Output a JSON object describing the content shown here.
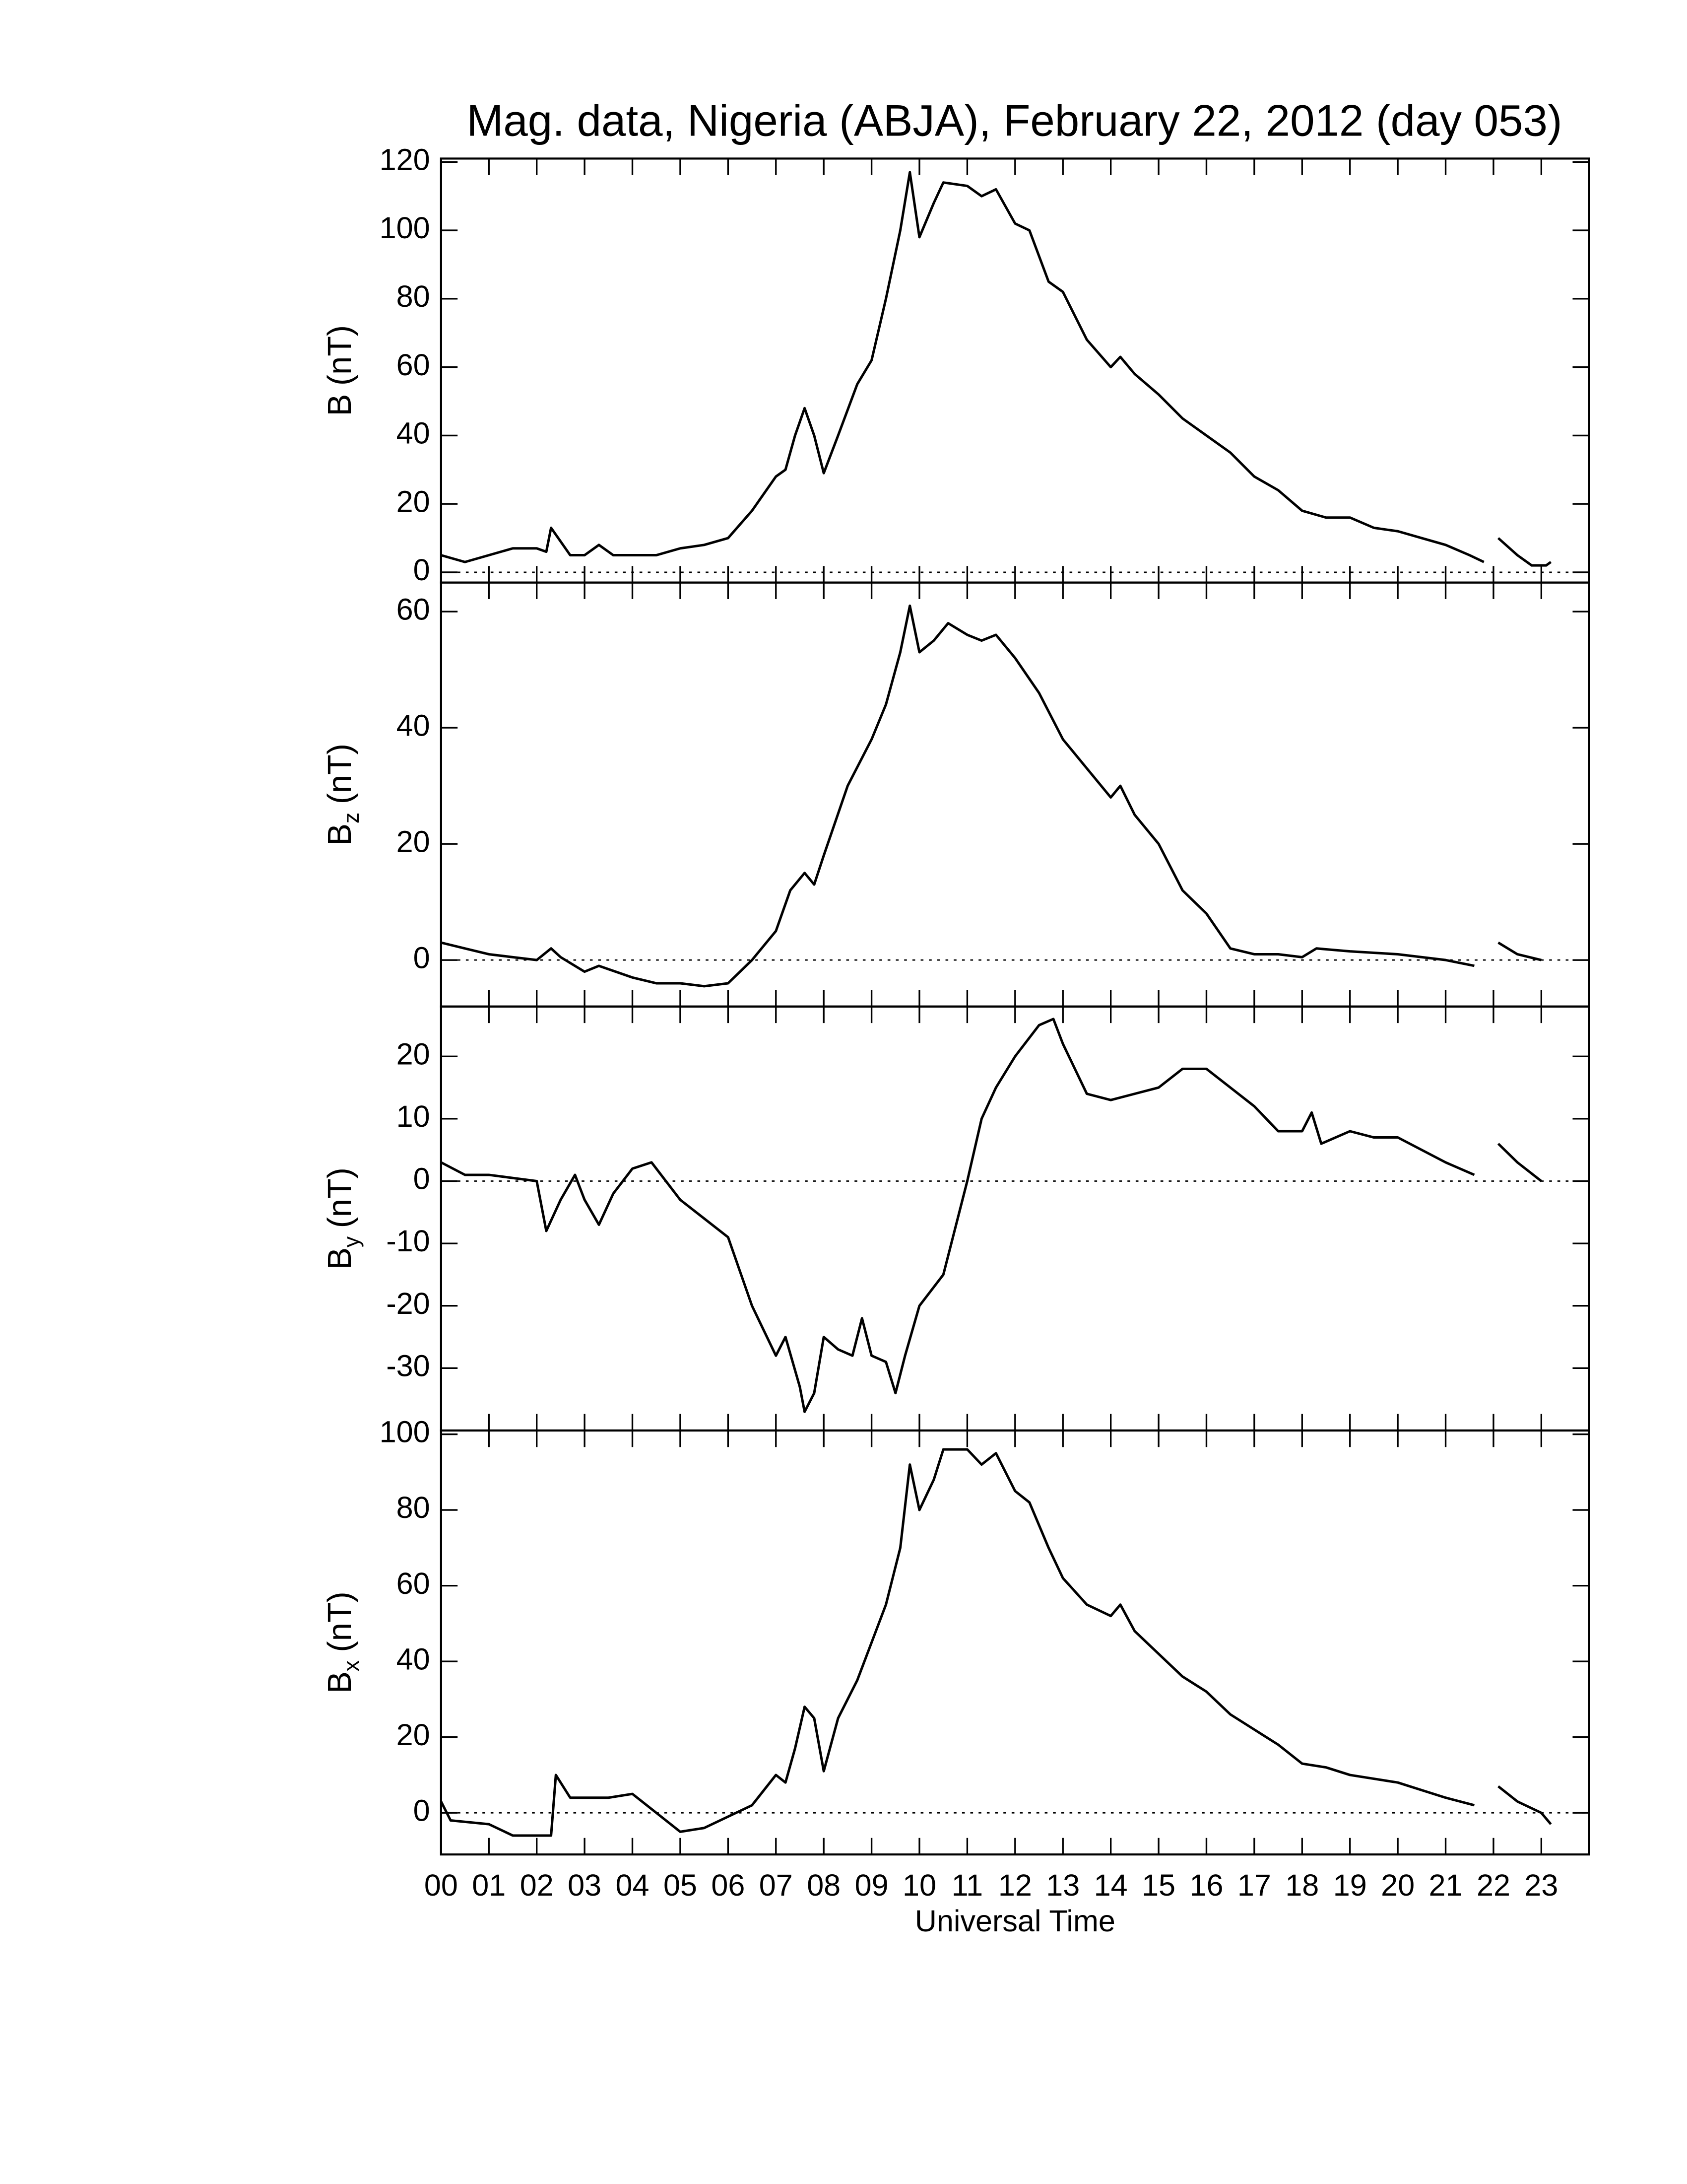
{
  "chart_data": [
    {
      "type": "line",
      "title": "Mag. data, Nigeria (ABJA), February 22, 2012 (day 053)",
      "ylabel": {
        "text": "B",
        "unit": "(nT)"
      },
      "xlim": [
        0,
        24
      ],
      "ylim": [
        -3,
        121
      ],
      "yticks": [
        0,
        20,
        40,
        60,
        80,
        100,
        120
      ],
      "zero_line": true,
      "series": [
        {
          "name": "B",
          "color": "#000000",
          "x": [
            0,
            0.5,
            1,
            1.5,
            2,
            2.2,
            2.3,
            2.5,
            2.7,
            3,
            3.3,
            3.6,
            4,
            4.5,
            5,
            5.5,
            6,
            6.5,
            7,
            7.2,
            7.4,
            7.6,
            7.8,
            8,
            8.3,
            8.7,
            9,
            9.3,
            9.6,
            9.8,
            10,
            10.3,
            10.5,
            11,
            11.3,
            11.6,
            12,
            12.3,
            12.7,
            13,
            13.5,
            14,
            14.2,
            14.5,
            15,
            15.5,
            16,
            16.5,
            17,
            17.5,
            18,
            18.5,
            19,
            19.5,
            20,
            20.5,
            21,
            21.5,
            21.8,
            22,
            22.1,
            22.5,
            22.8,
            23.1,
            23.2
          ],
          "values": [
            5,
            3,
            5,
            7,
            7,
            6,
            13,
            9,
            5,
            5,
            8,
            5,
            5,
            5,
            7,
            8,
            10,
            18,
            28,
            30,
            40,
            48,
            40,
            29,
            40,
            55,
            62,
            80,
            100,
            117,
            98,
            108,
            114,
            113,
            110,
            112,
            102,
            100,
            85,
            82,
            68,
            60,
            63,
            58,
            52,
            45,
            40,
            35,
            28,
            24,
            18,
            16,
            16,
            13,
            12,
            10,
            8,
            5,
            3,
            null,
            10,
            5,
            2,
            2,
            3
          ]
        }
      ]
    },
    {
      "type": "line",
      "ylabel": {
        "text": "B",
        "sub": "z",
        "unit": "(nT)"
      },
      "xlim": [
        0,
        24
      ],
      "ylim": [
        -8,
        65
      ],
      "yticks": [
        0,
        20,
        40,
        60
      ],
      "zero_line": true,
      "series": [
        {
          "name": "Bz",
          "color": "#000000",
          "x": [
            0,
            0.5,
            1,
            1.5,
            2,
            2.3,
            2.5,
            3,
            3.3,
            4,
            4.5,
            5,
            5.5,
            6,
            6.5,
            7,
            7.3,
            7.6,
            7.8,
            8,
            8.5,
            9,
            9.3,
            9.6,
            9.8,
            10,
            10.3,
            10.6,
            11,
            11.3,
            11.6,
            12,
            12.5,
            13,
            13.5,
            14,
            14.2,
            14.5,
            15,
            15.5,
            16,
            16.5,
            17,
            17.5,
            18,
            18.3,
            19,
            20,
            21,
            21.6,
            22,
            22.1,
            22.5,
            23
          ],
          "values": [
            3,
            2,
            1,
            0.5,
            0,
            2,
            0.5,
            -2,
            -1,
            -3,
            -4,
            -4,
            -4.5,
            -4,
            0,
            5,
            12,
            15,
            13,
            18,
            30,
            38,
            44,
            53,
            61,
            53,
            55,
            58,
            56,
            55,
            56,
            52,
            46,
            38,
            33,
            28,
            30,
            25,
            20,
            12,
            8,
            2,
            1,
            1,
            0.5,
            2,
            1.5,
            1,
            0,
            -1,
            null,
            3,
            1,
            0
          ]
        }
      ]
    },
    {
      "type": "line",
      "ylabel": {
        "text": "B",
        "sub": "y",
        "unit": "(nT)"
      },
      "xlim": [
        0,
        24
      ],
      "ylim": [
        -40,
        28
      ],
      "yticks": [
        -30,
        -20,
        -10,
        0,
        10,
        20
      ],
      "zero_line": true,
      "series": [
        {
          "name": "By",
          "color": "#000000",
          "x": [
            0,
            0.5,
            1,
            1.5,
            2,
            2.2,
            2.5,
            2.8,
            3,
            3.3,
            3.6,
            4,
            4.4,
            5,
            5.5,
            6,
            6.5,
            7,
            7.2,
            7.5,
            7.6,
            7.8,
            8,
            8.3,
            8.6,
            8.8,
            9,
            9.3,
            9.5,
            9.7,
            10,
            10.5,
            11,
            11.3,
            11.6,
            12,
            12.5,
            12.8,
            13,
            13.5,
            14,
            14.5,
            15,
            15.5,
            16,
            16.5,
            17,
            17.5,
            18,
            18.2,
            18.4,
            19,
            19.5,
            20,
            20.5,
            21,
            21.6,
            22,
            22.1,
            22.5,
            23
          ],
          "values": [
            3,
            1,
            1,
            0.5,
            0,
            -8,
            -3,
            1,
            -3,
            -7,
            -2,
            2,
            3,
            -3,
            -6,
            -9,
            -20,
            -28,
            -25,
            -33,
            -37,
            -34,
            -25,
            -27,
            -28,
            -22,
            -28,
            -29,
            -34,
            -28,
            -20,
            -15,
            0,
            10,
            15,
            20,
            25,
            26,
            22,
            14,
            13,
            14,
            15,
            18,
            18,
            15,
            12,
            8,
            8,
            11,
            6,
            8,
            7,
            7,
            5,
            3,
            1,
            null,
            6,
            3,
            0
          ]
        }
      ]
    },
    {
      "type": "line",
      "ylabel": {
        "text": "B",
        "sub": "x",
        "unit": "(nT)"
      },
      "xlabel": "Universal Time",
      "xlim": [
        0,
        24
      ],
      "ylim": [
        -11,
        101
      ],
      "yticks": [
        0,
        20,
        40,
        60,
        80,
        100
      ],
      "zero_line": true,
      "xticks": [
        {
          "value": 0,
          "label": "00"
        },
        {
          "value": 1,
          "label": "01"
        },
        {
          "value": 2,
          "label": "02"
        },
        {
          "value": 3,
          "label": "03"
        },
        {
          "value": 4,
          "label": "04"
        },
        {
          "value": 5,
          "label": "05"
        },
        {
          "value": 6,
          "label": "06"
        },
        {
          "value": 7,
          "label": "07"
        },
        {
          "value": 8,
          "label": "08"
        },
        {
          "value": 9,
          "label": "09"
        },
        {
          "value": 10,
          "label": "10"
        },
        {
          "value": 11,
          "label": "11"
        },
        {
          "value": 12,
          "label": "12"
        },
        {
          "value": 13,
          "label": "13"
        },
        {
          "value": 14,
          "label": "14"
        },
        {
          "value": 15,
          "label": "15"
        },
        {
          "value": 16,
          "label": "16"
        },
        {
          "value": 17,
          "label": "17"
        },
        {
          "value": 18,
          "label": "18"
        },
        {
          "value": 19,
          "label": "19"
        },
        {
          "value": 20,
          "label": "20"
        },
        {
          "value": 21,
          "label": "21"
        },
        {
          "value": 22,
          "label": "22"
        },
        {
          "value": 23,
          "label": "23"
        }
      ],
      "series": [
        {
          "name": "Bx",
          "color": "#000000",
          "x": [
            0,
            0.2,
            1,
            1.5,
            2,
            2.3,
            2.4,
            2.7,
            3,
            3.5,
            4,
            4.5,
            5,
            5.5,
            6,
            6.5,
            7,
            7.2,
            7.4,
            7.6,
            7.8,
            8,
            8.3,
            8.7,
            9,
            9.3,
            9.6,
            9.8,
            10,
            10.3,
            10.5,
            11,
            11.3,
            11.6,
            12,
            12.3,
            12.7,
            13,
            13.5,
            14,
            14.2,
            14.5,
            15,
            15.5,
            16,
            16.5,
            17,
            17.5,
            18,
            18.5,
            19,
            19.5,
            20,
            20.5,
            21,
            21.6,
            22,
            22.1,
            22.5,
            23,
            23.2
          ],
          "values": [
            3,
            -2,
            -3,
            -6,
            -6,
            -6,
            10,
            4,
            4,
            4,
            5,
            0,
            -5,
            -4,
            -1,
            2,
            10,
            8,
            17,
            28,
            25,
            11,
            25,
            35,
            45,
            55,
            70,
            92,
            80,
            88,
            96,
            96,
            92,
            95,
            85,
            82,
            70,
            62,
            55,
            52,
            55,
            48,
            42,
            36,
            32,
            26,
            22,
            18,
            13,
            12,
            10,
            9,
            8,
            6,
            4,
            2,
            null,
            7,
            3,
            0,
            -3
          ]
        }
      ]
    }
  ]
}
